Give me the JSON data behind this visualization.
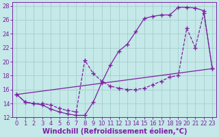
{
  "xlabel": "Windchill (Refroidissement éolien,°C)",
  "xlim": [
    -0.5,
    23.5
  ],
  "ylim": [
    12,
    28.5
  ],
  "xticks": [
    0,
    1,
    2,
    3,
    4,
    5,
    6,
    7,
    8,
    9,
    10,
    11,
    12,
    13,
    14,
    15,
    16,
    17,
    18,
    19,
    20,
    21,
    22,
    23
  ],
  "yticks": [
    12,
    14,
    16,
    18,
    20,
    22,
    24,
    26,
    28
  ],
  "curve1_x": [
    0,
    1,
    2,
    3,
    4,
    5,
    6,
    7,
    8,
    9,
    10,
    11,
    12,
    13,
    14,
    15,
    16,
    17,
    18,
    19,
    20,
    21,
    22,
    23
  ],
  "curve1_y": [
    15.3,
    14.2,
    14.0,
    13.8,
    13.2,
    12.8,
    12.5,
    12.3,
    12.3,
    14.2,
    17.0,
    19.5,
    21.5,
    22.5,
    24.3,
    26.2,
    26.5,
    26.7,
    26.7,
    27.8,
    27.8,
    27.7,
    27.3,
    19.0
  ],
  "curve2_x": [
    0,
    1,
    2,
    3,
    4,
    5,
    6,
    7,
    8,
    9,
    10,
    11,
    12,
    13,
    14,
    15,
    16,
    17,
    18,
    19,
    20,
    21,
    22,
    23
  ],
  "curve2_y": [
    15.3,
    14.2,
    14.0,
    14.0,
    13.8,
    13.3,
    13.0,
    12.8,
    20.2,
    18.3,
    17.2,
    16.5,
    16.2,
    16.0,
    16.0,
    16.2,
    16.7,
    17.2,
    17.8,
    18.0,
    24.8,
    22.0,
    27.0,
    19.0
  ],
  "curve3_x": [
    0,
    23
  ],
  "curve3_y": [
    15.3,
    19.0
  ],
  "line_color": "#7B1FA2",
  "marker_color": "#7B1FA2",
  "bg_color": "#C5E8E8",
  "grid_color": "#A0C8C8",
  "tick_label_fontsize": 6.0,
  "xlabel_fontsize": 7.2
}
